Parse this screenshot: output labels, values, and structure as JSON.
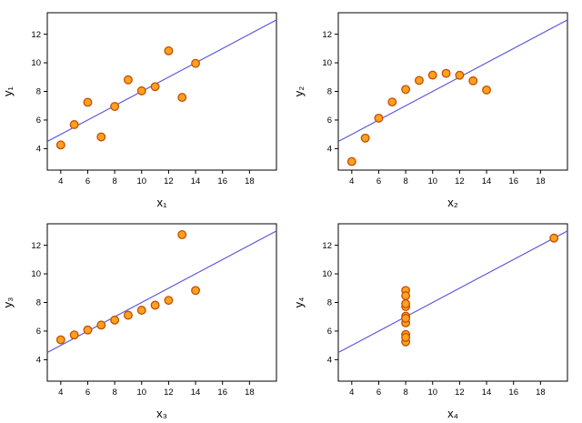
{
  "style": {
    "background": "#ffffff",
    "point_fill": "#FFA01E",
    "point_stroke": "#C24E00",
    "line": "#5252DC",
    "frame": "#000000",
    "text": "#000000"
  },
  "chart_data": [
    {
      "type": "scatter",
      "title": "",
      "xlabel": "x₁",
      "ylabel": "y₁",
      "x": [
        10,
        8,
        13,
        9,
        11,
        14,
        6,
        4,
        12,
        7,
        5
      ],
      "y": [
        8.04,
        6.95,
        7.58,
        8.81,
        8.33,
        9.96,
        7.24,
        4.26,
        10.84,
        4.82,
        5.68
      ],
      "xlim": [
        3,
        20
      ],
      "ylim": [
        2.5,
        13.5
      ],
      "xticks": [
        4,
        6,
        8,
        10,
        12,
        14,
        16,
        18
      ],
      "yticks": [
        4,
        6,
        8,
        10,
        12
      ],
      "trendline": {
        "slope": 0.5,
        "intercept": 3
      },
      "grid": false,
      "legend": "none"
    },
    {
      "type": "scatter",
      "title": "",
      "xlabel": "x₂",
      "ylabel": "y₂",
      "x": [
        10,
        8,
        13,
        9,
        11,
        14,
        6,
        4,
        12,
        7,
        5
      ],
      "y": [
        9.14,
        8.14,
        8.74,
        8.77,
        9.26,
        8.1,
        6.13,
        3.1,
        9.13,
        7.26,
        4.74
      ],
      "xlim": [
        3,
        20
      ],
      "ylim": [
        2.5,
        13.5
      ],
      "xticks": [
        4,
        6,
        8,
        10,
        12,
        14,
        16,
        18
      ],
      "yticks": [
        4,
        6,
        8,
        10,
        12
      ],
      "trendline": {
        "slope": 0.5,
        "intercept": 3
      },
      "grid": false,
      "legend": "none"
    },
    {
      "type": "scatter",
      "title": "",
      "xlabel": "x₃",
      "ylabel": "y₃",
      "x": [
        10,
        8,
        13,
        9,
        11,
        14,
        6,
        4,
        12,
        7,
        5
      ],
      "y": [
        7.46,
        6.77,
        12.74,
        7.11,
        7.81,
        8.84,
        6.08,
        5.39,
        8.15,
        6.42,
        5.73
      ],
      "xlim": [
        3,
        20
      ],
      "ylim": [
        2.5,
        13.5
      ],
      "xticks": [
        4,
        6,
        8,
        10,
        12,
        14,
        16,
        18
      ],
      "yticks": [
        4,
        6,
        8,
        10,
        12
      ],
      "trendline": {
        "slope": 0.5,
        "intercept": 3
      },
      "grid": false,
      "legend": "none"
    },
    {
      "type": "scatter",
      "title": "",
      "xlabel": "x₄",
      "ylabel": "y₄",
      "x": [
        8,
        8,
        8,
        8,
        8,
        8,
        8,
        19,
        8,
        8,
        8
      ],
      "y": [
        6.58,
        5.76,
        7.71,
        8.84,
        8.47,
        7.04,
        5.25,
        12.5,
        5.56,
        7.91,
        6.89
      ],
      "xlim": [
        3,
        20
      ],
      "ylim": [
        2.5,
        13.5
      ],
      "xticks": [
        4,
        6,
        8,
        10,
        12,
        14,
        16,
        18
      ],
      "yticks": [
        4,
        6,
        8,
        10,
        12
      ],
      "trendline": {
        "slope": 0.5,
        "intercept": 3
      },
      "grid": false,
      "legend": "none"
    }
  ]
}
